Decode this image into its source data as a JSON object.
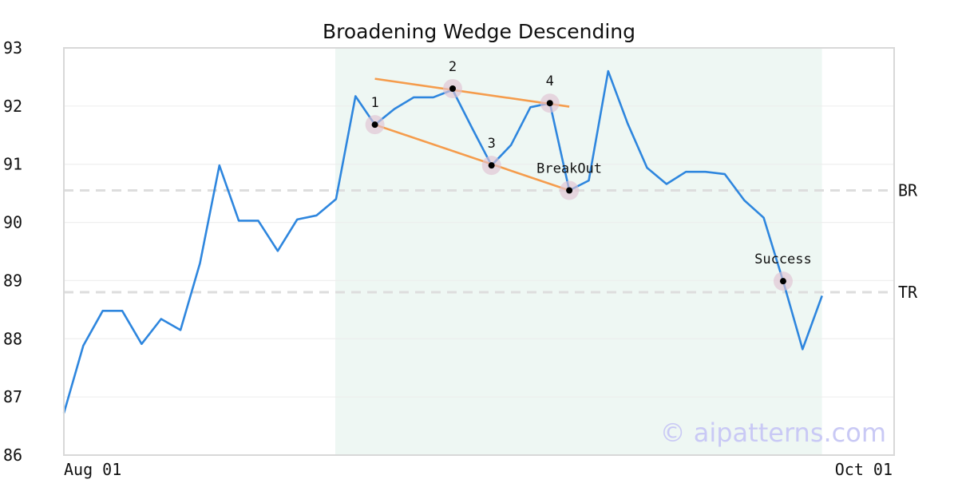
{
  "chart_data": {
    "type": "line",
    "title": "Broadening Wedge Descending",
    "xlabel": "",
    "ylabel": "",
    "ylim": [
      86,
      93
    ],
    "yticks": [
      86,
      87,
      88,
      89,
      90,
      91,
      92,
      93
    ],
    "x_tick_labels": [
      "Aug 01",
      "Oct 01"
    ],
    "grid": true,
    "series": [
      {
        "color": "#2e86de",
        "values": [
          86.72,
          87.88,
          88.48,
          88.48,
          87.91,
          88.34,
          88.15,
          89.3,
          90.98,
          90.03,
          90.03,
          89.51,
          90.05,
          90.12,
          90.4,
          92.17,
          91.68,
          91.95,
          92.15,
          92.15,
          92.28,
          91.62,
          90.98,
          91.33,
          91.98,
          92.05,
          90.55,
          90.72,
          92.6,
          91.7,
          90.94,
          90.66,
          90.87,
          90.87,
          90.83,
          90.38,
          90.08,
          88.99,
          87.82,
          88.74
        ]
      }
    ],
    "highlight_range": [
      14,
      39
    ],
    "highlight_color": "#eef7f3",
    "ref_lines": [
      {
        "label": "BR",
        "value": 90.55
      },
      {
        "label": "TR",
        "value": 88.8
      }
    ],
    "trend_lines": [
      {
        "color": "#f59c4c",
        "from": [
          16,
          92.47
        ],
        "to": [
          26,
          91.99
        ]
      },
      {
        "color": "#f59c4c",
        "from": [
          16,
          91.68
        ],
        "to": [
          26,
          90.55
        ]
      }
    ],
    "points": [
      {
        "label": "1",
        "index": 16,
        "value": 91.68
      },
      {
        "label": "2",
        "index": 20,
        "value": 92.3
      },
      {
        "label": "3",
        "index": 22,
        "value": 90.98
      },
      {
        "label": "4",
        "index": 25,
        "value": 92.05
      },
      {
        "label": "BreakOut",
        "index": 26,
        "value": 90.55
      },
      {
        "label": "Success",
        "index": 37,
        "value": 88.99
      }
    ],
    "watermark": "© aipatterns.com"
  }
}
